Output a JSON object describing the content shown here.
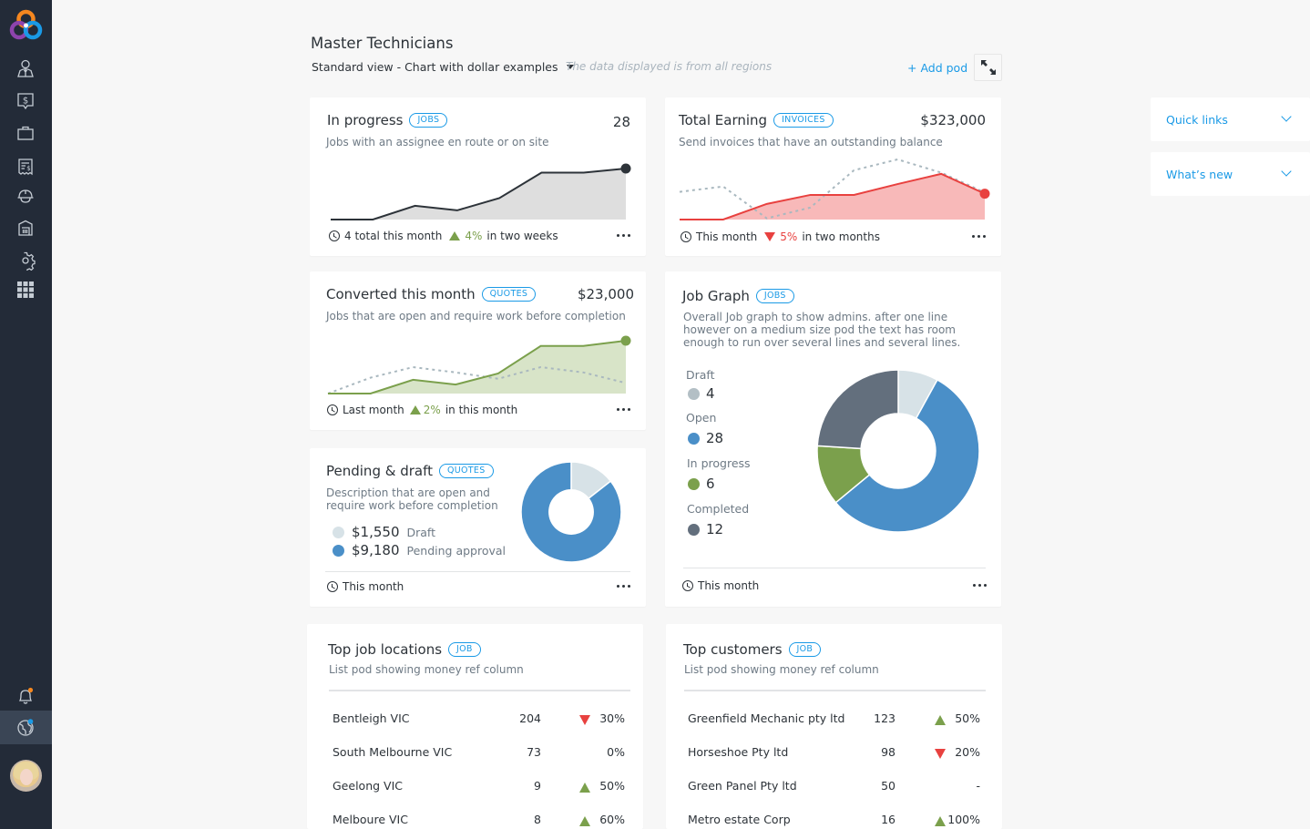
{
  "app": {
    "nav": [
      {
        "name": "people-icon"
      },
      {
        "name": "dollar-quote-icon"
      },
      {
        "name": "briefcase-icon"
      },
      {
        "name": "invoice-icon"
      },
      {
        "name": "hardhat-icon"
      },
      {
        "name": "warehouse-icon"
      },
      {
        "name": "gear-icon"
      },
      {
        "name": "apps-grid-icon"
      }
    ],
    "bottom_nav": [
      {
        "name": "bell-icon",
        "dot_color": "#f5871f"
      },
      {
        "name": "globe-icon",
        "dot_color": "#1a9ae6"
      }
    ]
  },
  "header": {
    "title": "Master Technicians",
    "view": "Standard view - Chart with dollar examples",
    "region_note": "The data displayed is from all regions",
    "add_pod": "+ Add pod"
  },
  "colors": {
    "accent": "#1a9ae6",
    "up": "#7ba04c",
    "down": "#e8413f",
    "dark_line": "#2d3339",
    "dotted": "#a9b8bf"
  },
  "pods": {
    "in_progress": {
      "title": "In progress",
      "badge": "JOBS",
      "value": "28",
      "desc": "Jobs with an assignee en route or on site",
      "footer": "4 total this month",
      "trend": "up",
      "pct": "4%",
      "period": "in two weeks"
    },
    "total_earning": {
      "title": "Total Earning",
      "badge": "INVOICES",
      "value": "$323,000",
      "desc": "Send invoices that have an outstanding balance",
      "footer": "This month",
      "trend": "down",
      "pct": "5%",
      "period": "in two months"
    },
    "converted": {
      "title": "Converted this month",
      "badge": "QUOTES",
      "value": "$23,000",
      "desc": "Jobs that are open and require work before completion",
      "footer": "Last month",
      "trend": "up",
      "pct": "2%",
      "period": "in this month"
    },
    "pending": {
      "title": "Pending & draft",
      "badge": "QUOTES",
      "desc": "Description that are open and require work before completion",
      "footer": "This month",
      "legend": [
        {
          "amount": "$1,550",
          "label": "Draft",
          "color": "#d7e2e7"
        },
        {
          "amount": "$9,180",
          "label": "Pending approval",
          "color": "#4a8fc8"
        }
      ]
    },
    "job_graph": {
      "title": "Job Graph",
      "badge": "JOBS",
      "desc": "Overall Job graph to show admins. after one line however on a medium size pod the text has room enough to run over several lines and several lines.",
      "footer": "This month"
    },
    "top_locations": {
      "title": "Top job locations",
      "badge": "JOB",
      "desc": "List pod showing money ref column",
      "rows": [
        {
          "name": "Bentleigh VIC",
          "count": "204",
          "trend": "down",
          "pct": "30%"
        },
        {
          "name": "South Melbourne VIC",
          "count": "73",
          "trend": "none",
          "pct": "0%"
        },
        {
          "name": "Geelong VIC",
          "count": "9",
          "trend": "up",
          "pct": "50%"
        },
        {
          "name": "Melboure VIC",
          "count": "8",
          "trend": "up",
          "pct": "60%"
        }
      ]
    },
    "top_customers": {
      "title": "Top customers",
      "badge": "JOB",
      "desc": "List pod showing money ref column",
      "rows": [
        {
          "name": "Greenfield Mechanic pty ltd",
          "count": "123",
          "trend": "up",
          "pct": "50%"
        },
        {
          "name": "Horseshoe Pty ltd",
          "count": "98",
          "trend": "down",
          "pct": "20%"
        },
        {
          "name": "Green Panel Pty ltd",
          "count": "50",
          "trend": "none",
          "pct": "-"
        },
        {
          "name": "Metro estate Corp",
          "count": "16",
          "trend": "up",
          "pct": "100%"
        }
      ]
    }
  },
  "side": {
    "quick_links": "Quick links",
    "whats_new": "What’s new"
  },
  "chart_data": [
    {
      "type": "area",
      "title": "In progress",
      "x": [
        0,
        1,
        2,
        3,
        4,
        5,
        6,
        7
      ],
      "series": [
        {
          "name": "current",
          "values": [
            0,
            0,
            27,
            18,
            42,
            92,
            92,
            100
          ],
          "color": "#2d3339",
          "fill": "#dedede"
        }
      ],
      "ylim": [
        0,
        100
      ]
    },
    {
      "type": "area",
      "title": "Total Earning",
      "x": [
        0,
        1,
        2,
        3,
        4,
        5,
        6,
        7
      ],
      "series": [
        {
          "name": "current",
          "values": [
            0,
            0,
            26,
            41,
            41,
            59,
            76,
            43
          ],
          "color": "#e8413f",
          "fill": "#f8b9b9"
        },
        {
          "name": "previous",
          "values": [
            46,
            55,
            2,
            20,
            82,
            100,
            78,
            45
          ],
          "color": "#a9b8bf",
          "dashed": true
        }
      ],
      "ylim": [
        0,
        100
      ]
    },
    {
      "type": "area",
      "title": "Converted this month",
      "x": [
        0,
        1,
        2,
        3,
        4,
        5,
        6,
        7
      ],
      "series": [
        {
          "name": "current",
          "values": [
            0,
            0,
            26,
            17,
            38,
            90,
            90,
            100
          ],
          "color": "#7ba04c",
          "fill": "#d8e4c8"
        },
        {
          "name": "previous",
          "values": [
            0,
            30,
            50,
            40,
            28,
            50,
            40,
            20
          ],
          "color": "#a9b8bf",
          "dashed": true
        }
      ],
      "ylim": [
        0,
        100
      ]
    },
    {
      "type": "pie",
      "title": "Pending & draft",
      "categories": [
        "Draft",
        "Pending approval"
      ],
      "values": [
        1550,
        9180
      ],
      "colors": [
        "#d7e2e7",
        "#4a8fc8"
      ]
    },
    {
      "type": "pie",
      "title": "Job Graph",
      "categories": [
        "Draft",
        "Open",
        "In progress",
        "Completed"
      ],
      "values": [
        4,
        28,
        6,
        12
      ],
      "colors": [
        "#d7e2e7",
        "#4a8fc8",
        "#7ba04c",
        "#636f7d"
      ]
    }
  ]
}
